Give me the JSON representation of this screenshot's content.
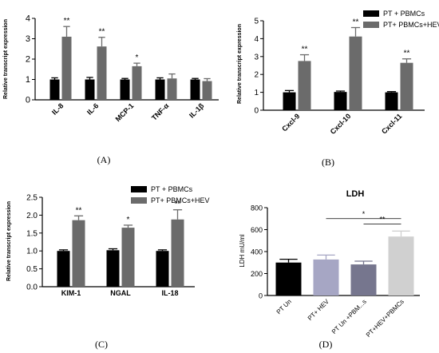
{
  "chart_data": [
    {
      "type": "bar",
      "panel_label": "(A)",
      "title": "",
      "ylabel": "Relative transcript expression",
      "ylim": [
        0,
        4
      ],
      "yticks": [
        "0",
        "1",
        "2",
        "3",
        "4"
      ],
      "categories": [
        "IL-8",
        "IL-6",
        "MCP-1",
        "TNF-α",
        "IL-1β"
      ],
      "series": [
        {
          "values": [
            1.0,
            1.0,
            1.0,
            1.0,
            1.0
          ],
          "errors": [
            0.08,
            0.1,
            0.05,
            0.08,
            0.05
          ],
          "color": "#000000"
        },
        {
          "values": [
            3.1,
            2.62,
            1.65,
            1.05,
            0.92
          ],
          "errors": [
            0.5,
            0.45,
            0.15,
            0.22,
            0.12
          ],
          "color": "#6b6b6b"
        }
      ],
      "significance": [
        "**",
        "**",
        "*",
        "",
        ""
      ]
    },
    {
      "type": "bar",
      "panel_label": "(B)",
      "title": "",
      "ylabel": "Relative transcript expression",
      "ylim": [
        0,
        5
      ],
      "yticks": [
        "0",
        "1",
        "2",
        "3",
        "4",
        "5"
      ],
      "categories": [
        "Cxcl-9",
        "Cxcl-10",
        "Cxcl-11"
      ],
      "series": [
        {
          "name": "PT + PBMCs",
          "values": [
            1.0,
            1.02,
            1.0
          ],
          "errors": [
            0.1,
            0.05,
            0.04
          ],
          "color": "#000000"
        },
        {
          "name": "PT+ PBMCs+HEV",
          "values": [
            2.75,
            4.12,
            2.65
          ],
          "errors": [
            0.35,
            0.5,
            0.22
          ],
          "color": "#6b6b6b"
        }
      ],
      "significance": [
        "**",
        "**",
        "**"
      ]
    },
    {
      "type": "bar",
      "panel_label": "(C)",
      "title": "",
      "ylabel": "Relative transcript expression",
      "ylim": [
        0,
        2.5
      ],
      "yticks": [
        "0.0",
        "0.5",
        "1.0",
        "1.5",
        "2.0",
        "2.5"
      ],
      "categories": [
        "KIM-1",
        "NGAL",
        "IL-18"
      ],
      "series": [
        {
          "name": "PT + PBMCs",
          "values": [
            1.0,
            1.02,
            1.0
          ],
          "errors": [
            0.03,
            0.04,
            0.03
          ],
          "color": "#000000"
        },
        {
          "name": "PT+ PBMCs+HEV",
          "values": [
            1.86,
            1.65,
            1.88
          ],
          "errors": [
            0.12,
            0.07,
            0.27
          ],
          "color": "#6b6b6b"
        }
      ],
      "significance": [
        "**",
        "*",
        "**"
      ]
    },
    {
      "type": "bar",
      "panel_label": "(D)",
      "title": "LDH",
      "ylabel": "LDH mU/ml",
      "ylim": [
        0,
        800
      ],
      "yticks": [
        "0",
        "200",
        "400",
        "600",
        "800"
      ],
      "categories": [
        "PT Un",
        "PT+ HEV",
        "PT Un +PBM...s",
        "PT+HEV+PBMCs"
      ],
      "values": [
        300,
        328,
        283,
        537
      ],
      "errors": [
        30,
        40,
        30,
        50
      ],
      "colors": [
        "#000000",
        "#a6a6c4",
        "#76768e",
        "#d0d0d0"
      ],
      "brackets": [
        {
          "from": 1,
          "to": 3,
          "label": "*"
        },
        {
          "from": 2,
          "to": 3,
          "label": "**"
        }
      ]
    }
  ]
}
